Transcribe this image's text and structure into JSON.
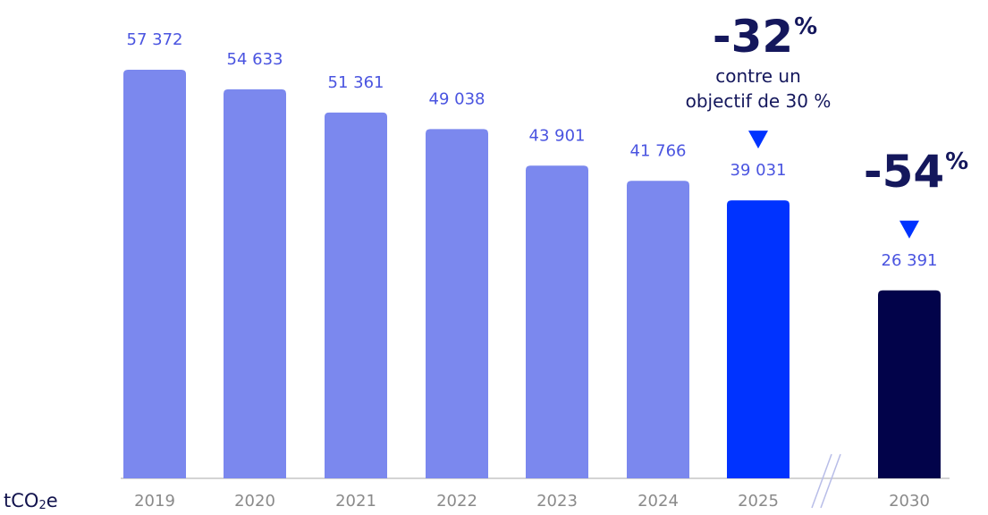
{
  "chart_data": {
    "type": "bar",
    "unit_label": {
      "main": "tCO",
      "sub": "2",
      "suffix": "e"
    },
    "categories": [
      "2019",
      "2020",
      "2021",
      "2022",
      "2023",
      "2024",
      "2025",
      "2030"
    ],
    "values": [
      57372,
      54633,
      51361,
      49038,
      43901,
      41766,
      39031,
      26391
    ],
    "value_labels": [
      "57 372",
      "54 633",
      "51 361",
      "49 038",
      "43 901",
      "41 766",
      "39 031",
      "26 391"
    ],
    "bar_colors": [
      "#7b88ee",
      "#7b88ee",
      "#7b88ee",
      "#7b88ee",
      "#7b88ee",
      "#7b88ee",
      "#0033ff",
      "#02034a"
    ],
    "axis_break_after": "2025",
    "ylim": [
      0,
      60000
    ],
    "grid": false,
    "annotations": [
      {
        "category": "2025",
        "headline": "-32",
        "suffix": "%",
        "line1": "contre un",
        "line2": "objectif de 30 %",
        "marker": "triangle-down"
      },
      {
        "category": "2030",
        "headline": "-54",
        "suffix": "%",
        "line1": "",
        "line2": "",
        "marker": "triangle-down"
      }
    ],
    "colors": {
      "value_label": "#4a54e0",
      "tick_label": "#8a8a8a",
      "headline": "#14175c",
      "subtext": "#14175c",
      "marker": "#0033ff",
      "axis": "#d4d4d4"
    }
  }
}
